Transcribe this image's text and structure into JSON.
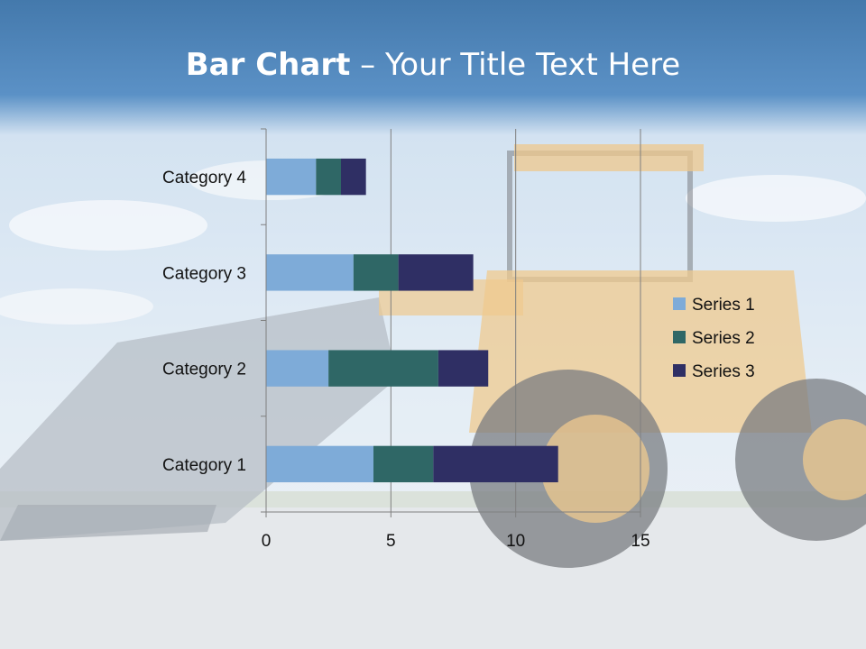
{
  "slide": {
    "title_bold": "Bar Chart",
    "title_rest": " – Your Title Text Here"
  },
  "colors": {
    "series1": "#7eabd8",
    "series2": "#2f6766",
    "series3": "#2f2f64",
    "grid": "#7f7f7f"
  },
  "chart_data": {
    "type": "bar",
    "orientation": "horizontal",
    "stacked": true,
    "categories": [
      "Category 1",
      "Category 2",
      "Category 3",
      "Category 4"
    ],
    "series": [
      {
        "name": "Series 1",
        "values": [
          4.3,
          2.5,
          3.5,
          2.0
        ]
      },
      {
        "name": "Series 2",
        "values": [
          2.4,
          4.4,
          1.8,
          1.0
        ]
      },
      {
        "name": "Series 3",
        "values": [
          5.0,
          2.0,
          3.0,
          1.0
        ]
      }
    ],
    "xlim": [
      0,
      15
    ],
    "xticks": [
      0,
      5,
      10,
      15
    ],
    "grid": true,
    "legend": "right",
    "title": "",
    "xlabel": "",
    "ylabel": ""
  }
}
